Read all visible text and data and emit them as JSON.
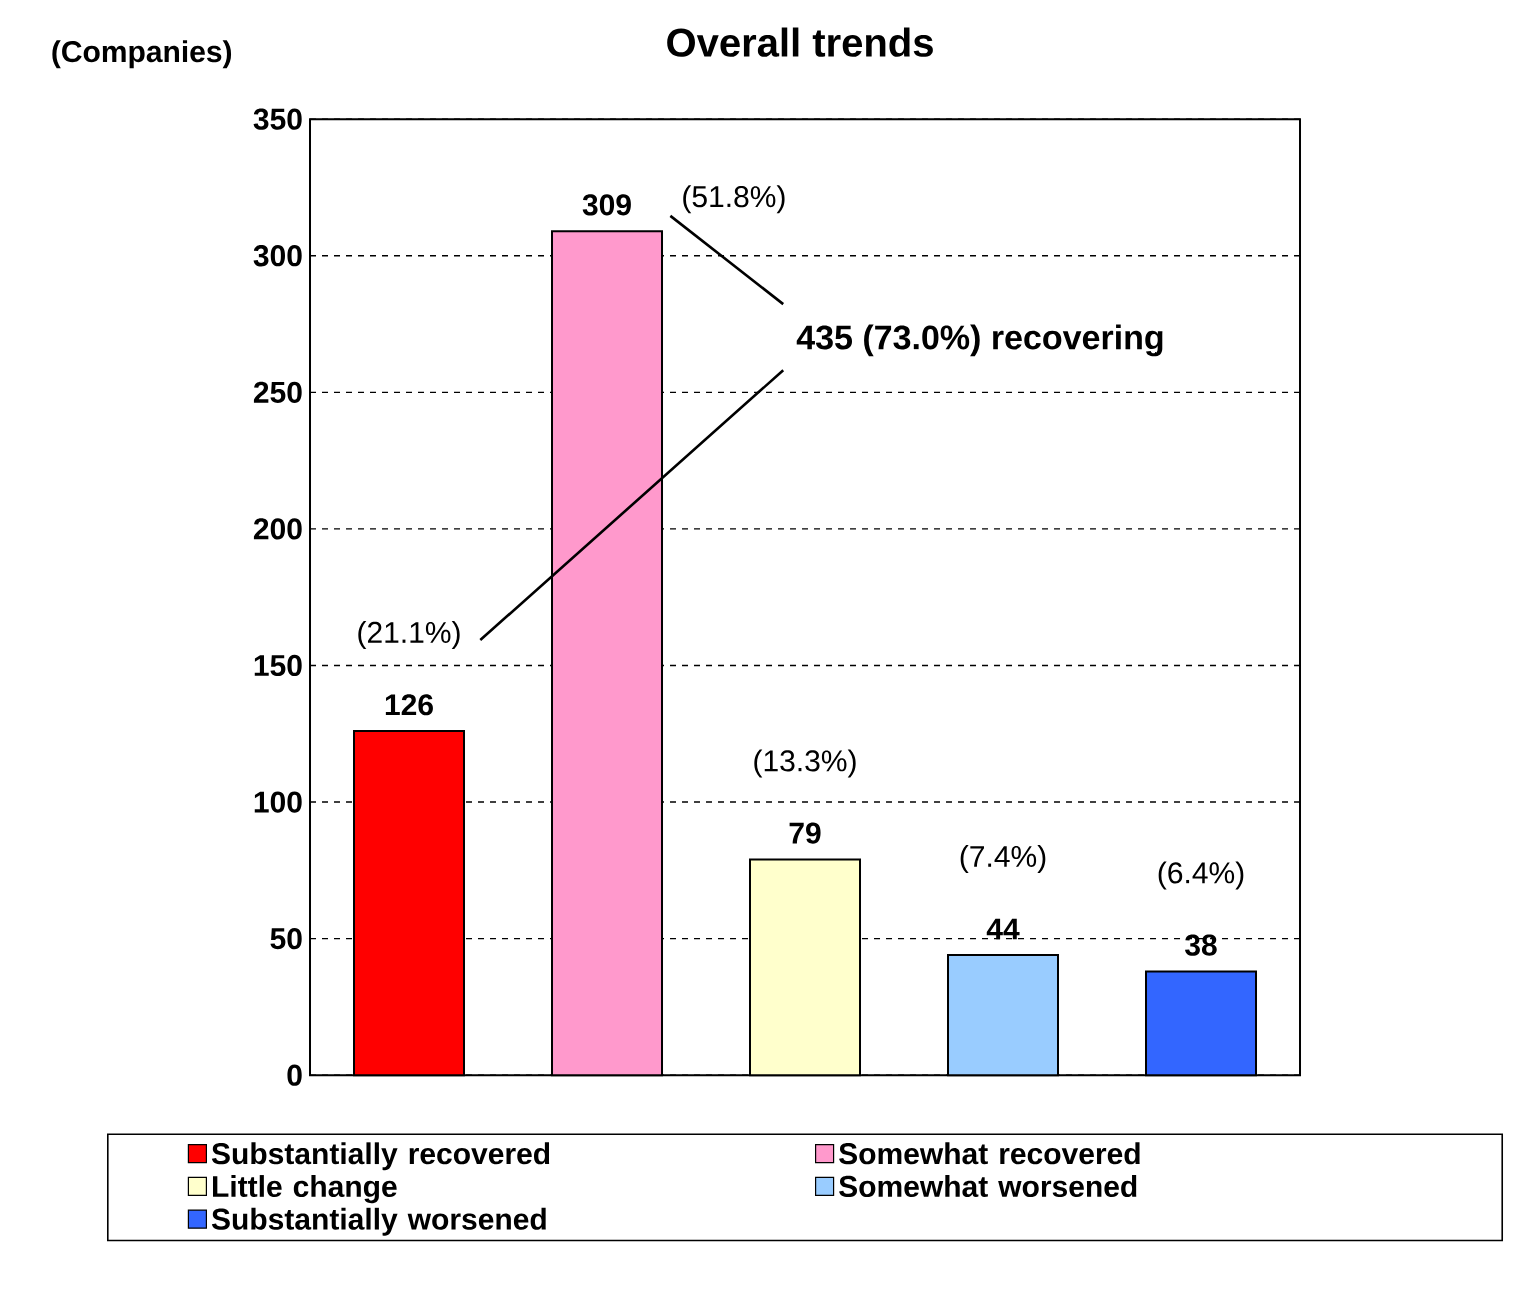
{
  "chart_data": {
    "type": "bar",
    "title": "Overall trends",
    "ylabel": "(Companies)",
    "categories": [
      null,
      null,
      null,
      null,
      null
    ],
    "series": [
      {
        "name": "Substantially recovered",
        "color": "#ff0000",
        "values": [
          126,
          null,
          null,
          null,
          null
        ]
      },
      {
        "name": "Somewhat recovered",
        "color": "#ff99cc",
        "values": [
          null,
          309,
          null,
          null,
          null
        ]
      },
      {
        "name": "Little change",
        "color": "#ffffcc",
        "values": [
          null,
          null,
          79,
          null,
          null
        ]
      },
      {
        "name": "Somewhat worsened",
        "color": "#99ccff",
        "values": [
          null,
          null,
          null,
          44,
          null
        ]
      },
      {
        "name": "Substantially worsened",
        "color": "#3366ff",
        "values": [
          null,
          null,
          null,
          null,
          38
        ]
      }
    ],
    "ylim": [
      0,
      350
    ],
    "yticks": [
      0,
      50,
      100,
      150,
      200,
      250,
      300,
      350
    ],
    "grid": "y",
    "legend": "bottom",
    "data_labels": true,
    "annotations": [
      "(21.1%)",
      "(51.8%)",
      "(13.3%)",
      "(7.4%)",
      "(6.4%)",
      "435 (73.0%) recovering"
    ]
  }
}
